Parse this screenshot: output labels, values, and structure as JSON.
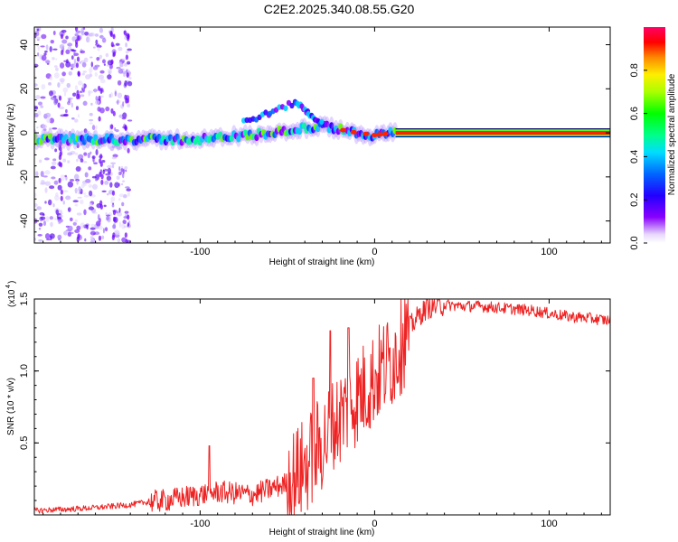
{
  "title": "C2E2.2025.340.08.55.G20",
  "colors": {
    "axis": "#000000",
    "snr_line": "#ee2222",
    "background": "#ffffff",
    "spec_low": "#8800ff",
    "spec_mid": "#00ccff",
    "spec_high": "#ff0000"
  },
  "chart_data": [
    {
      "type": "heatmap",
      "name": "spectrogram",
      "xlabel": "Height of straight line (km)",
      "ylabel": "Frequency (Hz)",
      "xlim": [
        -195,
        135
      ],
      "ylim": [
        -50,
        48
      ],
      "xticks": [
        -100,
        0,
        100
      ],
      "xtick_labels": [
        "-100",
        "0",
        "100"
      ],
      "yticks": [
        -40,
        -20,
        0,
        20,
        40
      ],
      "ytick_labels": [
        "-40",
        "-20",
        "0",
        "20",
        "40"
      ],
      "colorbar": {
        "label": "Normalized spectral amplitude",
        "range": [
          0,
          1
        ],
        "ticks": [
          0,
          0.2,
          0.4,
          0.6,
          0.8
        ],
        "tick_labels": [
          "0.0",
          "0.2",
          "0.4",
          "0.6",
          "0.8"
        ]
      },
      "features": {
        "main_band_center_hz": [
          {
            "x": -195,
            "f": -3
          },
          {
            "x": -150,
            "f": -3
          },
          {
            "x": -100,
            "f": -3
          },
          {
            "x": -70,
            "f": -1
          },
          {
            "x": -50,
            "f": 1
          },
          {
            "x": -30,
            "f": 3
          },
          {
            "x": -10,
            "f": 0
          },
          {
            "x": 0,
            "f": -1
          },
          {
            "x": 12,
            "f": 0
          },
          {
            "x": 135,
            "f": 0
          }
        ],
        "secondary_branch_hz": [
          {
            "x": -75,
            "f": 5
          },
          {
            "x": -60,
            "f": 9
          },
          {
            "x": -45,
            "f": 14
          },
          {
            "x": -38,
            "f": 9
          },
          {
            "x": -30,
            "f": 4
          }
        ],
        "noise_region_x": [
          -195,
          -140
        ]
      }
    },
    {
      "type": "line",
      "name": "snr",
      "xlabel": "Height of straight line (km)",
      "ylabel": "SNR (10 * v/v)",
      "scale_label": "(x10",
      "scale_exponent": "4",
      "xlim": [
        -195,
        135
      ],
      "ylim": [
        0,
        1.5
      ],
      "xticks": [
        -100,
        0,
        100
      ],
      "xtick_labels": [
        "-100",
        "0",
        "100"
      ],
      "yticks": [
        0.5,
        1.0,
        1.5
      ],
      "ytick_labels": [
        "0.5",
        "1.0",
        "1.5"
      ],
      "series": [
        {
          "name": "SNR",
          "x": [
            -195,
            -175,
            -160,
            -150,
            -140,
            -130,
            -120,
            -110,
            -100,
            -90,
            -80,
            -70,
            -60,
            -50,
            -45,
            -40,
            -35,
            -30,
            -25,
            -20,
            -15,
            -10,
            -5,
            0,
            5,
            10,
            15,
            20,
            25,
            30,
            40,
            50,
            60,
            70,
            80,
            90,
            100,
            110,
            120,
            135
          ],
          "values": [
            0.03,
            0.04,
            0.05,
            0.06,
            0.07,
            0.09,
            0.1,
            0.12,
            0.14,
            0.16,
            0.15,
            0.14,
            0.18,
            0.22,
            0.28,
            0.33,
            0.42,
            0.5,
            0.58,
            0.68,
            0.76,
            0.82,
            0.88,
            0.95,
            1.02,
            1.08,
            1.18,
            1.3,
            1.38,
            1.44,
            1.46,
            1.45,
            1.45,
            1.44,
            1.43,
            1.42,
            1.4,
            1.38,
            1.37,
            1.35
          ]
        }
      ],
      "peaks": [
        {
          "x": -95,
          "v": 0.48
        },
        {
          "x": -35,
          "v": 0.95
        },
        {
          "x": -25,
          "v": 1.28
        },
        {
          "x": -15,
          "v": 1.3
        },
        {
          "x": 15,
          "v": 1.42
        }
      ]
    }
  ]
}
